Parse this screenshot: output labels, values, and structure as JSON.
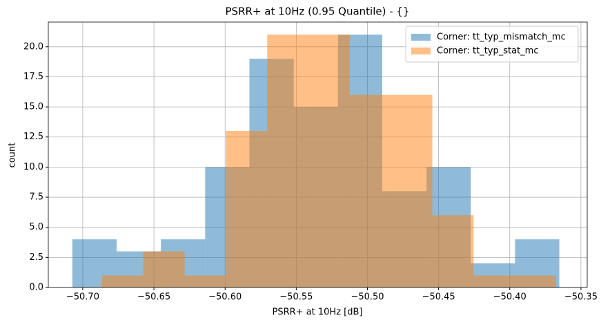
{
  "chart_data": {
    "type": "histogram",
    "title": "PSRR+ at 10Hz (0.95 Quantile) - {}",
    "x_label": "PSRR+ at 10Hz [dB]",
    "y_label": "count",
    "series": [
      {
        "name": "Corner: tt_typ_mismatch_mc",
        "color": "#1f77b4",
        "alpha": 0.5,
        "bins": [
          -50.7073,
          -50.6762,
          -50.6451,
          -50.614,
          -50.5829,
          -50.5518,
          -50.5207,
          -50.4896,
          -50.4585,
          -50.4274,
          -50.3963,
          -50.3652
        ],
        "values": [
          4,
          3,
          4,
          10,
          19,
          15,
          21,
          8,
          10,
          2,
          4
        ]
      },
      {
        "name": "Corner: tt_typ_stat_mc",
        "color": "#ff7f0e",
        "alpha": 0.5,
        "bins": [
          -50.6864,
          -50.6574,
          -50.6284,
          -50.5994,
          -50.5704,
          -50.5414,
          -50.5124,
          -50.4834,
          -50.4544,
          -50.4254,
          -50.3964,
          -50.3674
        ],
        "values": [
          1,
          3,
          1,
          13,
          21,
          21,
          16,
          16,
          6,
          1,
          1
        ]
      }
    ],
    "xlim": [
      -50.7242,
      -50.3456
    ],
    "ylim": [
      0,
      22.05
    ],
    "xticks": [
      {
        "value": -50.7,
        "label": "−50.70"
      },
      {
        "value": -50.65,
        "label": "−50.65"
      },
      {
        "value": -50.6,
        "label": "−50.60"
      },
      {
        "value": -50.55,
        "label": "−50.55"
      },
      {
        "value": -50.5,
        "label": "−50.50"
      },
      {
        "value": -50.45,
        "label": "−50.45"
      },
      {
        "value": -50.4,
        "label": "−50.40"
      },
      {
        "value": -50.35,
        "label": "−50.35"
      }
    ],
    "yticks": [
      {
        "value": 0,
        "label": "0.0"
      },
      2.5,
      {
        "value": 5,
        "label": "5.0"
      },
      7.5,
      {
        "value": 10,
        "label": "10.0"
      },
      12.5,
      {
        "value": 15,
        "label": "15.0"
      },
      17.5,
      {
        "value": 20,
        "label": "20.0"
      }
    ],
    "grid": true,
    "legend": "upper right"
  }
}
